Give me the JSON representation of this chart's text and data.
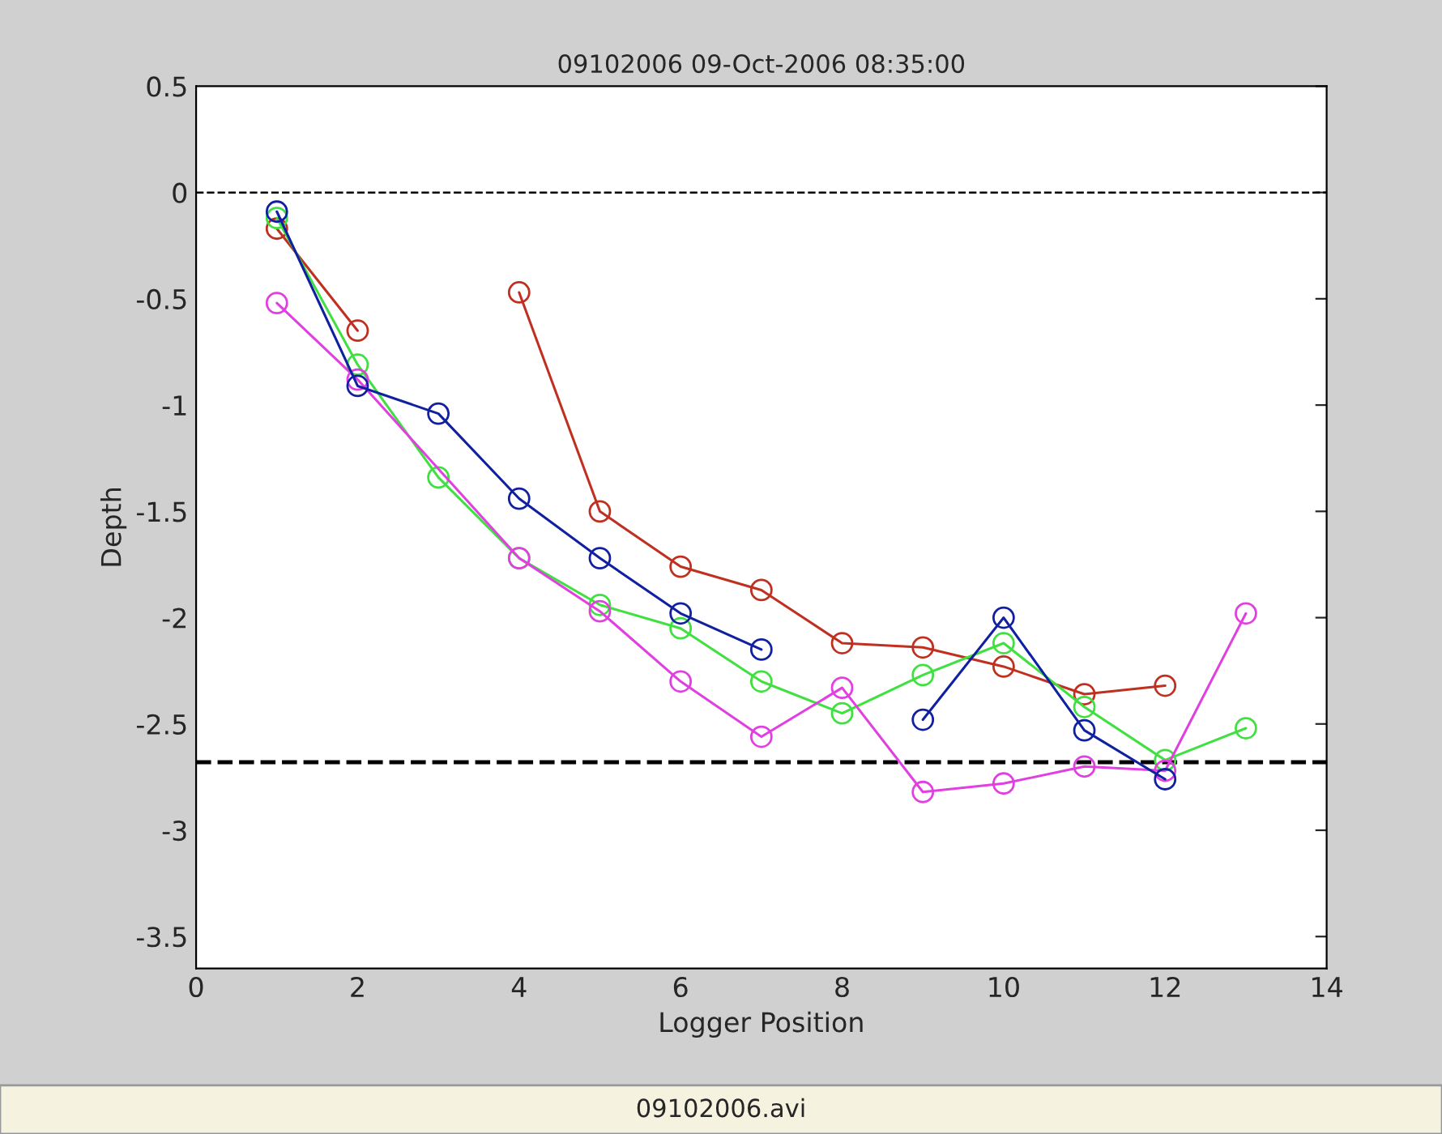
{
  "chart_data": {
    "type": "line",
    "title": "09102006 09-Oct-2006 08:35:00",
    "xlabel": "Logger Position",
    "ylabel": "Depth",
    "annotations": [
      "09102006.avi"
    ],
    "xlim": [
      0,
      14
    ],
    "xticks": [
      0,
      2,
      4,
      6,
      8,
      10,
      12,
      14
    ],
    "ylim": [
      -3.65,
      0.5
    ],
    "yticks": [
      {
        "value": 0.5,
        "label": "0.5"
      },
      {
        "value": 0,
        "label": "0"
      },
      {
        "value": -0.5,
        "label": "-0.5"
      },
      {
        "value": -1,
        "label": "-1"
      },
      {
        "value": -1.5,
        "label": "-1.5"
      },
      {
        "value": -2,
        "label": "-2"
      },
      {
        "value": -2.5,
        "label": "-2.5"
      },
      {
        "value": -3,
        "label": "-3"
      },
      {
        "value": -3.5,
        "label": "-3.5"
      }
    ],
    "marker": "circle",
    "line_style": "solid",
    "grid": false,
    "legend": false,
    "series": [
      {
        "color": "#c03020",
        "x": [
          1,
          2,
          3,
          4,
          5,
          6,
          7,
          8,
          9,
          10,
          11,
          12
        ],
        "values": [
          -0.17,
          -0.65,
          null,
          -0.47,
          -1.5,
          -1.76,
          -1.87,
          -2.12,
          -2.14,
          -2.23,
          -2.36,
          -2.32
        ]
      },
      {
        "color": "#40e040",
        "x": [
          1,
          2,
          3,
          4,
          5,
          6,
          7,
          8,
          9,
          10,
          11,
          12,
          13
        ],
        "values": [
          -0.12,
          -0.81,
          -1.34,
          -1.72,
          -1.94,
          -2.05,
          -2.3,
          -2.45,
          -2.27,
          -2.12,
          -2.42,
          -2.67,
          -2.52
        ]
      },
      {
        "color": "#e040e0",
        "x": [
          1,
          2,
          4,
          5,
          6,
          7,
          8,
          9,
          10,
          11,
          12,
          13
        ],
        "values": [
          -0.52,
          -0.88,
          -1.72,
          -1.97,
          -2.3,
          -2.56,
          -2.33,
          -2.82,
          -2.78,
          -2.7,
          -2.72,
          -1.98
        ]
      },
      {
        "color": "#1020a0",
        "x": [
          1,
          2,
          3,
          4,
          5,
          6,
          7,
          8,
          9,
          10,
          11,
          12
        ],
        "values": [
          -0.09,
          -0.91,
          -1.04,
          -1.44,
          -1.72,
          -1.98,
          -2.15,
          null,
          -2.48,
          -2.0,
          -2.53,
          -2.76
        ]
      }
    ],
    "ref_lines": [
      {
        "axis": "y",
        "value": 0,
        "color": "#000000",
        "line_style": "dashed"
      },
      {
        "axis": "y",
        "value": -2.68,
        "color": "#000000",
        "line_style": "dashed"
      }
    ]
  }
}
